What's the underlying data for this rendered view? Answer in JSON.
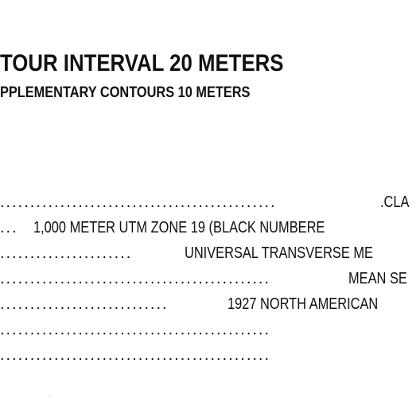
{
  "legend": {
    "title": "TOUR INTERVAL 20 METERS",
    "subtitle": "PPLEMENTARY CONTOURS 10 METERS"
  },
  "notes": [
    {
      "leader": "..............................................",
      "text": ".CLA"
    },
    {
      "leader": "...",
      "text": "1,000 METER UTM ZONE 19 (BLACK NUMBERE"
    },
    {
      "leader": "......................",
      "text": "UNIVERSAL TRANSVERSE ME"
    },
    {
      "leader": ".............................................",
      "text": "MEAN SE"
    },
    {
      "leader": "............................",
      "text": "1927 NORTH AMERICAN"
    },
    {
      "leader": ".............................................",
      "text": ""
    },
    {
      "leader": ".............................................",
      "text": ""
    }
  ]
}
